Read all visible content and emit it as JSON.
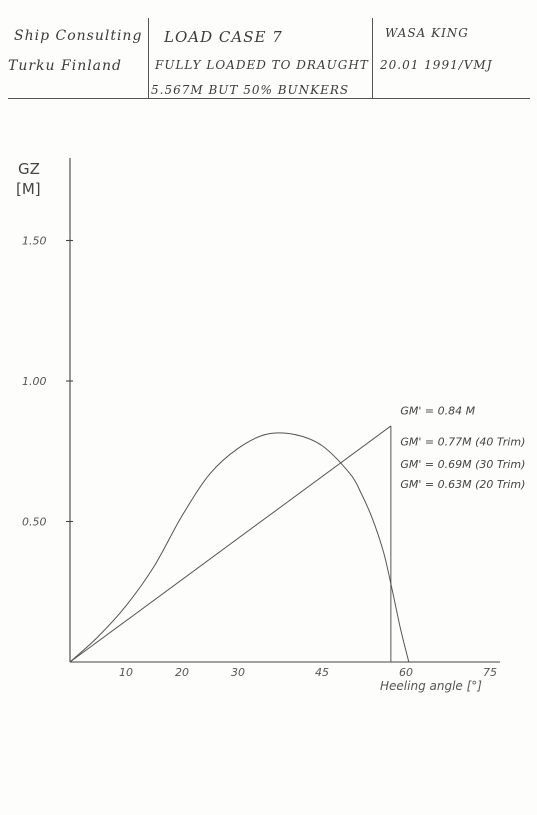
{
  "header": {
    "company_line1": "Ship   Consulting",
    "company_line2": "Turku   Finland",
    "case_title": "LOAD  CASE  7",
    "case_line2": "FULLY LOADED   TO DRAUGHT",
    "case_line3": "5.567M  BUT  50%  BUNKERS",
    "ship_name": "WASA  KING",
    "date_sig": "20.01  1991/VMJ"
  },
  "chart_data": {
    "type": "line",
    "title": "",
    "xlabel": "Heeling  angle  [°]",
    "ylabel": "GZ",
    "yunit": "[M]",
    "xlim": [
      0,
      75
    ],
    "ylim": [
      0,
      1.75
    ],
    "x_ticks": [
      10,
      20,
      30,
      45,
      60,
      75
    ],
    "y_ticks": [
      {
        "value": 0.5,
        "label": "0.50"
      },
      {
        "value": 1.0,
        "label": "1.00"
      },
      {
        "value": 1.5,
        "label": "1.50"
      }
    ],
    "series": [
      {
        "x": [
          0,
          5,
          10,
          15,
          20,
          25,
          30,
          35,
          40,
          45,
          50,
          52,
          54,
          56,
          57.5,
          59,
          60.5
        ],
        "values": [
          0,
          0.09,
          0.2,
          0.34,
          0.52,
          0.67,
          0.76,
          0.81,
          0.81,
          0.77,
          0.67,
          0.6,
          0.51,
          0.39,
          0.26,
          0.12,
          0
        ]
      }
    ],
    "gm_line": {
      "x": [
        0,
        57.3
      ],
      "values": [
        0,
        0.84
      ]
    },
    "gm_drop": {
      "x": 57.3,
      "from": 0.84,
      "to": 0
    },
    "annotations": [
      {
        "text": "GM' = 0.84 M",
        "x": 59,
        "y": 0.88
      },
      {
        "text": "GM' = 0.77M (40 Trim)",
        "x": 59,
        "y": 0.77
      },
      {
        "text": "GM' = 0.69M (30 Trim)",
        "x": 59,
        "y": 0.69
      },
      {
        "text": "GM' = 0.63M (20 Trim)",
        "x": 59,
        "y": 0.62
      }
    ]
  }
}
